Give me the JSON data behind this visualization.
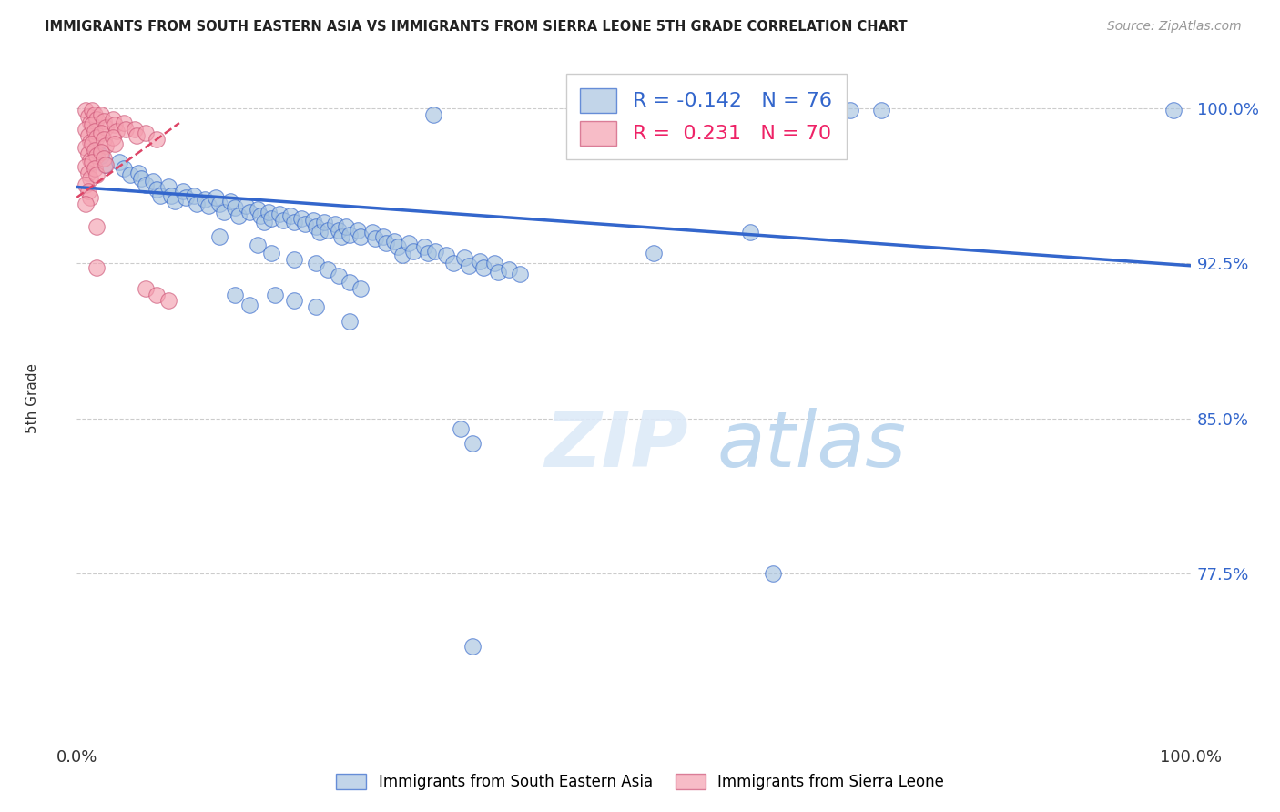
{
  "title": "IMMIGRANTS FROM SOUTH EASTERN ASIA VS IMMIGRANTS FROM SIERRA LEONE 5TH GRADE CORRELATION CHART",
  "source": "Source: ZipAtlas.com",
  "ylabel": "5th Grade",
  "ytick_labels": [
    "100.0%",
    "92.5%",
    "85.0%",
    "77.5%"
  ],
  "ytick_values": [
    1.0,
    0.925,
    0.85,
    0.775
  ],
  "xlim": [
    0.0,
    1.0
  ],
  "ylim": [
    0.695,
    1.025
  ],
  "blue_color": "#A8C4E0",
  "pink_color": "#F4A0B0",
  "line_blue": "#3366CC",
  "legend_blue_R": "-0.142",
  "legend_blue_N": "76",
  "legend_pink_R": "0.231",
  "legend_pink_N": "70",
  "watermark": "ZIPatlas",
  "blue_scatter": [
    [
      0.32,
      0.997
    ],
    [
      0.648,
      0.999
    ],
    [
      0.695,
      0.999
    ],
    [
      0.722,
      0.999
    ],
    [
      0.985,
      0.999
    ],
    [
      0.018,
      0.98
    ],
    [
      0.022,
      0.977
    ],
    [
      0.025,
      0.973
    ],
    [
      0.038,
      0.974
    ],
    [
      0.042,
      0.971
    ],
    [
      0.048,
      0.968
    ],
    [
      0.055,
      0.969
    ],
    [
      0.058,
      0.966
    ],
    [
      0.062,
      0.963
    ],
    [
      0.068,
      0.965
    ],
    [
      0.072,
      0.961
    ],
    [
      0.075,
      0.958
    ],
    [
      0.082,
      0.962
    ],
    [
      0.085,
      0.958
    ],
    [
      0.088,
      0.955
    ],
    [
      0.095,
      0.96
    ],
    [
      0.098,
      0.957
    ],
    [
      0.105,
      0.958
    ],
    [
      0.108,
      0.954
    ],
    [
      0.115,
      0.956
    ],
    [
      0.118,
      0.953
    ],
    [
      0.125,
      0.957
    ],
    [
      0.128,
      0.954
    ],
    [
      0.132,
      0.95
    ],
    [
      0.138,
      0.955
    ],
    [
      0.142,
      0.952
    ],
    [
      0.145,
      0.948
    ],
    [
      0.152,
      0.953
    ],
    [
      0.155,
      0.95
    ],
    [
      0.162,
      0.951
    ],
    [
      0.165,
      0.948
    ],
    [
      0.168,
      0.945
    ],
    [
      0.172,
      0.95
    ],
    [
      0.175,
      0.947
    ],
    [
      0.182,
      0.949
    ],
    [
      0.185,
      0.946
    ],
    [
      0.192,
      0.948
    ],
    [
      0.195,
      0.945
    ],
    [
      0.202,
      0.947
    ],
    [
      0.205,
      0.944
    ],
    [
      0.212,
      0.946
    ],
    [
      0.215,
      0.943
    ],
    [
      0.218,
      0.94
    ],
    [
      0.222,
      0.945
    ],
    [
      0.225,
      0.941
    ],
    [
      0.232,
      0.944
    ],
    [
      0.235,
      0.941
    ],
    [
      0.238,
      0.938
    ],
    [
      0.242,
      0.943
    ],
    [
      0.245,
      0.939
    ],
    [
      0.252,
      0.941
    ],
    [
      0.255,
      0.938
    ],
    [
      0.265,
      0.94
    ],
    [
      0.268,
      0.937
    ],
    [
      0.275,
      0.938
    ],
    [
      0.278,
      0.935
    ],
    [
      0.285,
      0.936
    ],
    [
      0.288,
      0.933
    ],
    [
      0.292,
      0.929
    ],
    [
      0.298,
      0.935
    ],
    [
      0.302,
      0.931
    ],
    [
      0.312,
      0.933
    ],
    [
      0.315,
      0.93
    ],
    [
      0.322,
      0.931
    ],
    [
      0.332,
      0.929
    ],
    [
      0.338,
      0.925
    ],
    [
      0.348,
      0.928
    ],
    [
      0.352,
      0.924
    ],
    [
      0.362,
      0.926
    ],
    [
      0.365,
      0.923
    ],
    [
      0.375,
      0.925
    ],
    [
      0.378,
      0.921
    ],
    [
      0.388,
      0.922
    ],
    [
      0.398,
      0.92
    ],
    [
      0.128,
      0.938
    ],
    [
      0.162,
      0.934
    ],
    [
      0.175,
      0.93
    ],
    [
      0.195,
      0.927
    ],
    [
      0.215,
      0.925
    ],
    [
      0.225,
      0.922
    ],
    [
      0.235,
      0.919
    ],
    [
      0.245,
      0.916
    ],
    [
      0.255,
      0.913
    ],
    [
      0.178,
      0.91
    ],
    [
      0.195,
      0.907
    ],
    [
      0.215,
      0.904
    ],
    [
      0.245,
      0.897
    ],
    [
      0.142,
      0.91
    ],
    [
      0.155,
      0.905
    ],
    [
      0.518,
      0.93
    ],
    [
      0.605,
      0.94
    ],
    [
      0.345,
      0.845
    ],
    [
      0.355,
      0.838
    ],
    [
      0.625,
      0.775
    ],
    [
      0.355,
      0.74
    ]
  ],
  "pink_scatter": [
    [
      0.008,
      0.999
    ],
    [
      0.01,
      0.996
    ],
    [
      0.012,
      0.993
    ],
    [
      0.008,
      0.99
    ],
    [
      0.01,
      0.987
    ],
    [
      0.012,
      0.984
    ],
    [
      0.008,
      0.981
    ],
    [
      0.01,
      0.978
    ],
    [
      0.012,
      0.975
    ],
    [
      0.008,
      0.972
    ],
    [
      0.01,
      0.969
    ],
    [
      0.012,
      0.966
    ],
    [
      0.008,
      0.963
    ],
    [
      0.01,
      0.96
    ],
    [
      0.012,
      0.957
    ],
    [
      0.008,
      0.954
    ],
    [
      0.014,
      0.999
    ],
    [
      0.016,
      0.997
    ],
    [
      0.018,
      0.995
    ],
    [
      0.014,
      0.992
    ],
    [
      0.016,
      0.989
    ],
    [
      0.018,
      0.986
    ],
    [
      0.014,
      0.983
    ],
    [
      0.016,
      0.98
    ],
    [
      0.018,
      0.977
    ],
    [
      0.014,
      0.974
    ],
    [
      0.016,
      0.971
    ],
    [
      0.018,
      0.968
    ],
    [
      0.022,
      0.997
    ],
    [
      0.024,
      0.994
    ],
    [
      0.026,
      0.991
    ],
    [
      0.022,
      0.988
    ],
    [
      0.024,
      0.985
    ],
    [
      0.026,
      0.982
    ],
    [
      0.022,
      0.979
    ],
    [
      0.024,
      0.976
    ],
    [
      0.026,
      0.973
    ],
    [
      0.032,
      0.995
    ],
    [
      0.034,
      0.992
    ],
    [
      0.036,
      0.989
    ],
    [
      0.032,
      0.986
    ],
    [
      0.034,
      0.983
    ],
    [
      0.042,
      0.993
    ],
    [
      0.044,
      0.99
    ],
    [
      0.052,
      0.99
    ],
    [
      0.054,
      0.987
    ],
    [
      0.062,
      0.988
    ],
    [
      0.072,
      0.985
    ],
    [
      0.018,
      0.943
    ],
    [
      0.018,
      0.923
    ],
    [
      0.062,
      0.913
    ],
    [
      0.072,
      0.91
    ],
    [
      0.082,
      0.907
    ]
  ],
  "blue_trend_x": [
    0.0,
    1.0
  ],
  "blue_trend_y_start": 0.962,
  "blue_trend_y_end": 0.924,
  "pink_trend_x": [
    0.0,
    0.092
  ],
  "pink_trend_y_start": 0.957,
  "pink_trend_y_end": 0.993
}
